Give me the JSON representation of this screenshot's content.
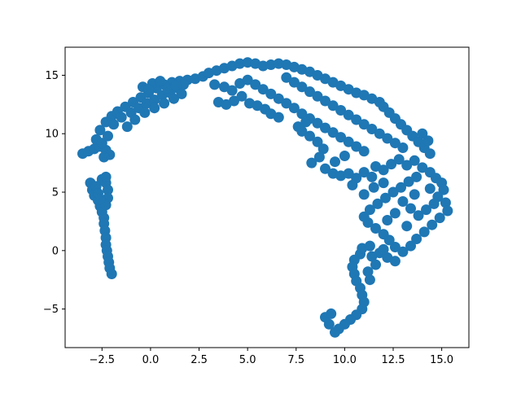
{
  "chart_data": {
    "type": "scatter",
    "title": "",
    "xlabel": "",
    "ylabel": "",
    "xlim": [
      -4.4,
      16.4
    ],
    "ylim": [
      -8.3,
      17.4
    ],
    "xticks": [
      {
        "value": -2.5,
        "label": "−2.5"
      },
      {
        "value": 0.0,
        "label": "0.0"
      },
      {
        "value": 2.5,
        "label": "2.5"
      },
      {
        "value": 5.0,
        "label": "5.0"
      },
      {
        "value": 7.5,
        "label": "7.5"
      },
      {
        "value": 10.0,
        "label": "10.0"
      },
      {
        "value": 12.5,
        "label": "12.5"
      },
      {
        "value": 15.0,
        "label": "15.0"
      }
    ],
    "yticks": [
      {
        "value": -5,
        "label": "−5"
      },
      {
        "value": 0,
        "label": "0"
      },
      {
        "value": 5,
        "label": "5"
      },
      {
        "value": 10,
        "label": "10"
      },
      {
        "value": 15,
        "label": "15"
      }
    ],
    "grid": false,
    "legend": "none",
    "color": "#1f77b4",
    "series": [
      {
        "points": [
          [
            -3.5,
            8.3
          ],
          [
            -3.2,
            8.5
          ],
          [
            -2.9,
            8.7
          ],
          [
            -2.6,
            8.9
          ],
          [
            -2.3,
            8.6
          ],
          [
            -2.1,
            8.2
          ],
          [
            -2.4,
            8.0
          ],
          [
            -2.8,
            9.5
          ],
          [
            -2.6,
            10.3
          ],
          [
            -2.3,
            11.0
          ],
          [
            -2.0,
            11.5
          ],
          [
            -1.7,
            11.9
          ],
          [
            -1.3,
            12.3
          ],
          [
            -0.9,
            12.7
          ],
          [
            -0.5,
            13.1
          ],
          [
            -0.1,
            13.5
          ],
          [
            0.3,
            13.9
          ],
          [
            0.7,
            14.2
          ],
          [
            1.1,
            14.4
          ],
          [
            1.5,
            14.5
          ],
          [
            1.9,
            14.6
          ],
          [
            2.3,
            14.7
          ],
          [
            2.7,
            14.9
          ],
          [
            -1.9,
            10.8
          ],
          [
            -1.5,
            11.4
          ],
          [
            -1.0,
            11.8
          ],
          [
            -0.6,
            12.2
          ],
          [
            -0.2,
            12.6
          ],
          [
            0.2,
            12.9
          ],
          [
            0.6,
            13.3
          ],
          [
            1.0,
            13.5
          ],
          [
            1.4,
            13.9
          ],
          [
            1.7,
            14.2
          ],
          [
            -0.4,
            14.0
          ],
          [
            0.1,
            14.3
          ],
          [
            0.5,
            14.5
          ],
          [
            -1.2,
            10.6
          ],
          [
            -0.8,
            11.2
          ],
          [
            -0.3,
            11.8
          ],
          [
            0.2,
            12.2
          ],
          [
            0.7,
            12.6
          ],
          [
            1.2,
            13.0
          ],
          [
            1.6,
            13.4
          ],
          [
            -2.5,
            9.2
          ],
          [
            -2.2,
            9.8
          ],
          [
            -0.1,
            13.8
          ],
          [
            0.9,
            13.9
          ],
          [
            1.3,
            14.1
          ],
          [
            -3.1,
            5.8
          ],
          [
            -3.0,
            5.2
          ],
          [
            -2.9,
            4.7
          ],
          [
            -2.7,
            4.3
          ],
          [
            -2.6,
            3.8
          ],
          [
            -2.5,
            3.3
          ],
          [
            -2.4,
            2.8
          ],
          [
            -2.4,
            2.3
          ],
          [
            -2.35,
            1.7
          ],
          [
            -2.3,
            1.1
          ],
          [
            -2.3,
            0.5
          ],
          [
            -2.25,
            0.0
          ],
          [
            -2.2,
            -0.5
          ],
          [
            -2.15,
            -1.0
          ],
          [
            -2.1,
            -1.5
          ],
          [
            -2.0,
            -2.0
          ],
          [
            -2.3,
            5.8
          ],
          [
            -2.2,
            5.2
          ],
          [
            -2.2,
            4.5
          ],
          [
            -2.3,
            3.9
          ],
          [
            -2.5,
            6.1
          ],
          [
            -2.8,
            5.5
          ],
          [
            -2.7,
            4.9
          ],
          [
            -2.3,
            6.3
          ],
          [
            -2.6,
            4.4
          ],
          [
            3.0,
            15.2
          ],
          [
            3.4,
            15.4
          ],
          [
            3.8,
            15.6
          ],
          [
            4.2,
            15.8
          ],
          [
            4.6,
            16.0
          ],
          [
            5.0,
            16.1
          ],
          [
            5.4,
            16.0
          ],
          [
            5.8,
            15.8
          ],
          [
            6.2,
            15.9
          ],
          [
            6.6,
            16.0
          ],
          [
            7.0,
            15.9
          ],
          [
            7.4,
            15.7
          ],
          [
            7.8,
            15.5
          ],
          [
            8.2,
            15.3
          ],
          [
            8.6,
            15.0
          ],
          [
            9.0,
            14.7
          ],
          [
            9.4,
            14.4
          ],
          [
            9.8,
            14.1
          ],
          [
            10.2,
            13.8
          ],
          [
            10.6,
            13.5
          ],
          [
            11.0,
            13.3
          ],
          [
            11.4,
            13.0
          ],
          [
            11.8,
            12.7
          ],
          [
            3.5,
            12.7
          ],
          [
            3.9,
            12.5
          ],
          [
            4.3,
            12.8
          ],
          [
            4.7,
            13.2
          ],
          [
            5.1,
            12.6
          ],
          [
            5.5,
            12.4
          ],
          [
            5.9,
            12.1
          ],
          [
            6.2,
            11.7
          ],
          [
            6.6,
            11.4
          ],
          [
            3.3,
            14.2
          ],
          [
            3.8,
            14.0
          ],
          [
            4.2,
            13.7
          ],
          [
            4.6,
            14.3
          ],
          [
            5.0,
            14.6
          ],
          [
            5.4,
            14.2
          ],
          [
            5.8,
            13.8
          ],
          [
            6.2,
            13.4
          ],
          [
            6.6,
            13.0
          ],
          [
            7.0,
            12.6
          ],
          [
            7.4,
            12.2
          ],
          [
            7.8,
            11.7
          ],
          [
            8.2,
            11.3
          ],
          [
            8.6,
            10.9
          ],
          [
            9.0,
            10.5
          ],
          [
            9.4,
            10.1
          ],
          [
            9.8,
            9.7
          ],
          [
            10.2,
            9.3
          ],
          [
            10.6,
            8.9
          ],
          [
            11.0,
            8.5
          ],
          [
            7.0,
            14.8
          ],
          [
            7.4,
            14.4
          ],
          [
            7.8,
            14.0
          ],
          [
            8.2,
            13.6
          ],
          [
            8.6,
            13.2
          ],
          [
            9.0,
            12.8
          ],
          [
            9.4,
            12.4
          ],
          [
            9.8,
            12.0
          ],
          [
            10.2,
            11.6
          ],
          [
            10.6,
            11.2
          ],
          [
            11.0,
            10.8
          ],
          [
            11.4,
            10.4
          ],
          [
            11.8,
            10.0
          ],
          [
            12.2,
            9.6
          ],
          [
            12.6,
            9.2
          ],
          [
            13.0,
            8.8
          ],
          [
            12.0,
            12.3
          ],
          [
            12.3,
            11.8
          ],
          [
            12.6,
            11.3
          ],
          [
            12.9,
            10.8
          ],
          [
            13.2,
            10.3
          ],
          [
            13.5,
            9.8
          ],
          [
            13.8,
            9.3
          ],
          [
            14.1,
            8.8
          ],
          [
            14.4,
            8.3
          ],
          [
            14.0,
            10.0
          ],
          [
            14.3,
            9.4
          ],
          [
            8.2,
            9.8
          ],
          [
            8.6,
            9.3
          ],
          [
            8.9,
            8.7
          ],
          [
            8.7,
            8.0
          ],
          [
            8.3,
            7.5
          ],
          [
            9.0,
            7.0
          ],
          [
            9.4,
            6.6
          ],
          [
            9.8,
            6.4
          ],
          [
            10.2,
            6.6
          ],
          [
            10.6,
            6.2
          ],
          [
            11.0,
            6.7
          ],
          [
            11.4,
            6.3
          ],
          [
            10.4,
            5.6
          ],
          [
            9.5,
            7.6
          ],
          [
            10.0,
            8.1
          ],
          [
            7.8,
            10.2
          ],
          [
            8.0,
            11.0
          ],
          [
            7.6,
            10.6
          ],
          [
            11.6,
            7.2
          ],
          [
            12.0,
            6.9
          ],
          [
            12.4,
            7.4
          ],
          [
            12.8,
            7.8
          ],
          [
            13.2,
            7.3
          ],
          [
            13.6,
            7.7
          ],
          [
            14.0,
            7.1
          ],
          [
            14.4,
            6.7
          ],
          [
            14.7,
            6.2
          ],
          [
            15.0,
            5.8
          ],
          [
            15.1,
            5.2
          ],
          [
            14.8,
            4.6
          ],
          [
            15.2,
            4.1
          ],
          [
            15.3,
            3.4
          ],
          [
            14.9,
            2.8
          ],
          [
            14.5,
            2.2
          ],
          [
            14.1,
            1.6
          ],
          [
            13.7,
            1.0
          ],
          [
            13.4,
            0.4
          ],
          [
            13.0,
            -0.1
          ],
          [
            12.6,
            0.3
          ],
          [
            12.3,
            0.9
          ],
          [
            12.0,
            1.4
          ],
          [
            11.6,
            1.9
          ],
          [
            11.2,
            2.4
          ],
          [
            11.0,
            2.9
          ],
          [
            11.3,
            3.5
          ],
          [
            11.7,
            4.0
          ],
          [
            12.1,
            4.5
          ],
          [
            12.5,
            5.0
          ],
          [
            12.9,
            5.4
          ],
          [
            13.3,
            5.9
          ],
          [
            13.7,
            6.3
          ],
          [
            13.0,
            4.2
          ],
          [
            13.4,
            3.6
          ],
          [
            13.8,
            3.0
          ],
          [
            14.2,
            3.5
          ],
          [
            14.6,
            4.0
          ],
          [
            12.6,
            3.2
          ],
          [
            12.2,
            2.6
          ],
          [
            13.2,
            2.1
          ],
          [
            13.6,
            4.8
          ],
          [
            14.4,
            5.3
          ],
          [
            12.0,
            5.8
          ],
          [
            11.5,
            5.4
          ],
          [
            11.0,
            4.8
          ],
          [
            10.8,
            -0.3
          ],
          [
            10.5,
            -0.8
          ],
          [
            10.4,
            -1.4
          ],
          [
            10.5,
            -2.0
          ],
          [
            10.6,
            -2.6
          ],
          [
            10.8,
            -3.2
          ],
          [
            10.9,
            -3.8
          ],
          [
            11.0,
            -4.4
          ],
          [
            10.9,
            -5.0
          ],
          [
            10.6,
            -5.5
          ],
          [
            10.3,
            -5.9
          ],
          [
            10.0,
            -6.3
          ],
          [
            9.7,
            -6.7
          ],
          [
            9.5,
            -7.0
          ],
          [
            9.2,
            -6.3
          ],
          [
            9.0,
            -5.7
          ],
          [
            9.3,
            -5.4
          ],
          [
            11.4,
            -0.5
          ],
          [
            11.8,
            -0.2
          ],
          [
            12.2,
            -0.6
          ],
          [
            11.6,
            -1.2
          ],
          [
            11.2,
            -1.8
          ],
          [
            11.3,
            -2.5
          ],
          [
            10.9,
            0.2
          ],
          [
            11.3,
            0.4
          ],
          [
            12.6,
            -0.9
          ],
          [
            12.0,
            0.1
          ]
        ]
      }
    ]
  }
}
